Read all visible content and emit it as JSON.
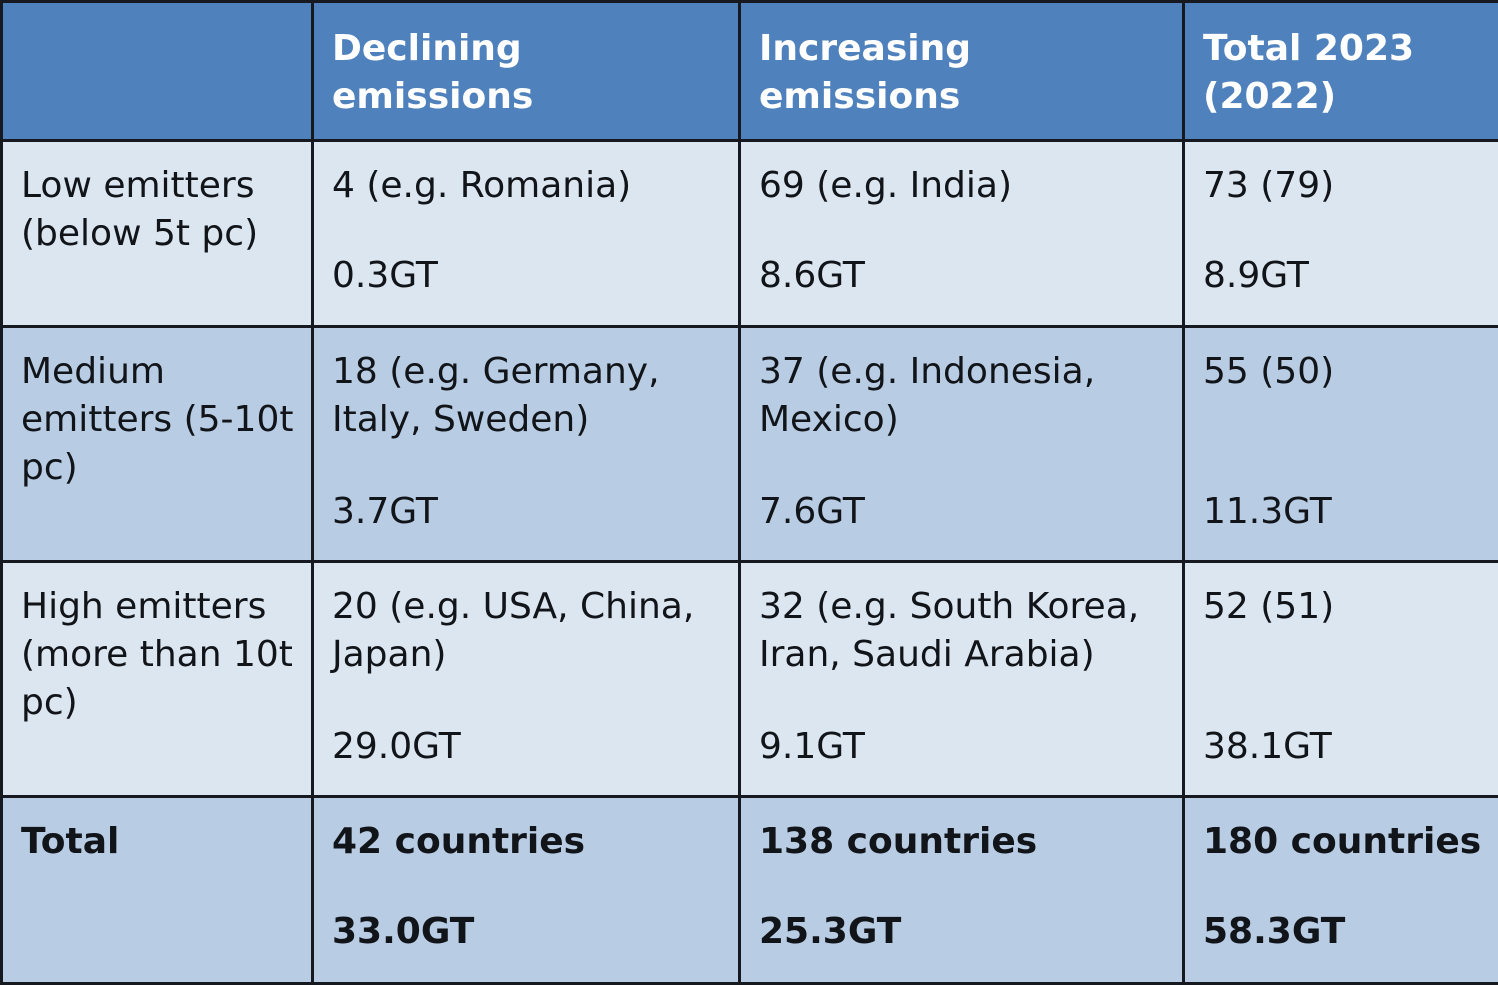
{
  "header": {
    "corner": "",
    "columns": [
      "Declining emissions",
      "Increasing emissions",
      "Total 2023 (2022)"
    ]
  },
  "rows": [
    {
      "label": "Low emitters (below 5t pc)",
      "declining": {
        "count": "4 (e.g. Romania)",
        "amount": "0.3GT"
      },
      "increasing": {
        "count": "69 (e.g. India)",
        "amount": "8.6GT"
      },
      "total": {
        "count": "73 (79)",
        "amount": "8.9GT"
      }
    },
    {
      "label": "Medium emitters (5-10t pc)",
      "declining": {
        "count": "18 (e.g. Germany, Italy, Sweden)",
        "amount": "3.7GT"
      },
      "increasing": {
        "count": "37 (e.g. Indonesia, Mexico)",
        "amount": "7.6GT"
      },
      "total": {
        "count": "55 (50)",
        "amount": "11.3GT"
      }
    },
    {
      "label": "High emitters (more than 10t pc)",
      "declining": {
        "count": "20 (e.g. USA, China, Japan)",
        "amount": "29.0GT"
      },
      "increasing": {
        "count": "32 (e.g. South Korea, Iran, Saudi Arabia)",
        "amount": "9.1GT"
      },
      "total": {
        "count": "52 (51)",
        "amount": "38.1GT"
      }
    }
  ],
  "totals": {
    "label": "Total",
    "declining": {
      "count": "42 countries",
      "amount": "33.0GT"
    },
    "increasing": {
      "count": "138 countries",
      "amount": "25.3GT"
    },
    "total": {
      "count": "180 countries",
      "amount": "58.3GT"
    }
  },
  "colors": {
    "header_bg": "#4f81bd",
    "row_light_bg": "#dce6f1",
    "row_dark_bg": "#b8cce4",
    "border": "#16191f"
  }
}
